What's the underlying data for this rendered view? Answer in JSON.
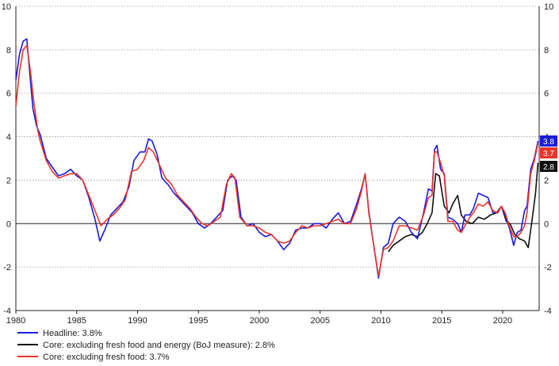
{
  "chart_data": {
    "type": "line",
    "xlim": [
      1980,
      2023
    ],
    "ylim": [
      -4,
      10
    ],
    "yticks": [
      -4,
      -2,
      0,
      2,
      4,
      6,
      8,
      10
    ],
    "xticks": [
      1980,
      1985,
      1990,
      1995,
      2000,
      2005,
      2010,
      2015,
      2020
    ],
    "grid": "horizontal dotted",
    "legend_position": "bottom-left",
    "series": [
      {
        "name": "Headline: 3.8%",
        "color": "#1a1adb",
        "end_value": "3.8",
        "points": [
          [
            1980.0,
            6.6
          ],
          [
            1980.3,
            7.8
          ],
          [
            1980.6,
            8.4
          ],
          [
            1980.9,
            8.5
          ],
          [
            1981.1,
            7.2
          ],
          [
            1981.4,
            5.3
          ],
          [
            1981.7,
            4.5
          ],
          [
            1982.0,
            4.1
          ],
          [
            1982.5,
            3.0
          ],
          [
            1983.0,
            2.6
          ],
          [
            1983.5,
            2.2
          ],
          [
            1984.0,
            2.3
          ],
          [
            1984.5,
            2.5
          ],
          [
            1985.0,
            2.2
          ],
          [
            1985.5,
            2.0
          ],
          [
            1986.0,
            1.2
          ],
          [
            1986.5,
            0.2
          ],
          [
            1986.9,
            -0.8
          ],
          [
            1987.3,
            -0.3
          ],
          [
            1987.8,
            0.4
          ],
          [
            1988.3,
            0.7
          ],
          [
            1988.8,
            1.0
          ],
          [
            1989.3,
            1.7
          ],
          [
            1989.7,
            2.9
          ],
          [
            1990.2,
            3.3
          ],
          [
            1990.6,
            3.3
          ],
          [
            1990.9,
            3.9
          ],
          [
            1991.2,
            3.8
          ],
          [
            1991.6,
            3.2
          ],
          [
            1992.0,
            2.1
          ],
          [
            1992.5,
            1.8
          ],
          [
            1993.0,
            1.4
          ],
          [
            1993.5,
            1.1
          ],
          [
            1994.0,
            0.8
          ],
          [
            1994.5,
            0.5
          ],
          [
            1995.0,
            0.0
          ],
          [
            1995.5,
            -0.2
          ],
          [
            1996.0,
            0.0
          ],
          [
            1996.5,
            0.3
          ],
          [
            1997.0,
            0.6
          ],
          [
            1997.4,
            2.0
          ],
          [
            1997.8,
            2.2
          ],
          [
            1998.1,
            2.0
          ],
          [
            1998.5,
            0.3
          ],
          [
            1999.0,
            -0.1
          ],
          [
            1999.5,
            0.0
          ],
          [
            2000.0,
            -0.4
          ],
          [
            2000.5,
            -0.6
          ],
          [
            2001.0,
            -0.5
          ],
          [
            2001.5,
            -0.8
          ],
          [
            2002.0,
            -1.2
          ],
          [
            2002.5,
            -0.9
          ],
          [
            2003.0,
            -0.3
          ],
          [
            2003.5,
            -0.2
          ],
          [
            2004.0,
            -0.2
          ],
          [
            2004.5,
            0.0
          ],
          [
            2005.0,
            0.0
          ],
          [
            2005.5,
            -0.2
          ],
          [
            2006.0,
            0.2
          ],
          [
            2006.5,
            0.5
          ],
          [
            2007.0,
            0.0
          ],
          [
            2007.5,
            0.1
          ],
          [
            2008.0,
            0.9
          ],
          [
            2008.4,
            1.6
          ],
          [
            2008.7,
            2.3
          ],
          [
            2009.0,
            0.6
          ],
          [
            2009.4,
            -1.0
          ],
          [
            2009.8,
            -2.5
          ],
          [
            2010.2,
            -1.1
          ],
          [
            2010.6,
            -0.9
          ],
          [
            2011.0,
            0.0
          ],
          [
            2011.5,
            0.3
          ],
          [
            2012.0,
            0.1
          ],
          [
            2012.5,
            -0.4
          ],
          [
            2013.0,
            -0.7
          ],
          [
            2013.5,
            0.5
          ],
          [
            2013.9,
            1.6
          ],
          [
            2014.2,
            1.5
          ],
          [
            2014.4,
            3.4
          ],
          [
            2014.6,
            3.6
          ],
          [
            2014.9,
            2.5
          ],
          [
            2015.2,
            2.3
          ],
          [
            2015.5,
            0.3
          ],
          [
            2015.9,
            0.2
          ],
          [
            2016.3,
            0.0
          ],
          [
            2016.6,
            -0.4
          ],
          [
            2016.9,
            0.4
          ],
          [
            2017.3,
            0.4
          ],
          [
            2017.6,
            0.7
          ],
          [
            2018.0,
            1.4
          ],
          [
            2018.4,
            1.3
          ],
          [
            2018.8,
            1.2
          ],
          [
            2019.2,
            0.5
          ],
          [
            2019.6,
            0.5
          ],
          [
            2019.9,
            0.8
          ],
          [
            2020.2,
            0.4
          ],
          [
            2020.6,
            -0.3
          ],
          [
            2020.9,
            -1.0
          ],
          [
            2021.2,
            -0.4
          ],
          [
            2021.5,
            -0.3
          ],
          [
            2021.8,
            0.6
          ],
          [
            2022.0,
            0.8
          ],
          [
            2022.3,
            2.5
          ],
          [
            2022.6,
            3.0
          ],
          [
            2022.9,
            3.8
          ]
        ]
      },
      {
        "name": "Core: excluding fresh food and energy (BoJ measure): 2.8%",
        "color": "#111111",
        "end_value": "2.8",
        "points": [
          [
            2010.6,
            -1.3
          ],
          [
            2011.0,
            -1.0
          ],
          [
            2011.5,
            -0.8
          ],
          [
            2012.0,
            -0.6
          ],
          [
            2012.5,
            -0.5
          ],
          [
            2013.0,
            -0.6
          ],
          [
            2013.4,
            -0.4
          ],
          [
            2013.8,
            0.0
          ],
          [
            2014.2,
            0.5
          ],
          [
            2014.5,
            2.3
          ],
          [
            2014.8,
            2.2
          ],
          [
            2015.2,
            0.8
          ],
          [
            2015.6,
            0.5
          ],
          [
            2015.9,
            0.9
          ],
          [
            2016.3,
            1.3
          ],
          [
            2016.6,
            0.4
          ],
          [
            2017.0,
            0.1
          ],
          [
            2017.5,
            0.0
          ],
          [
            2018.0,
            0.3
          ],
          [
            2018.5,
            0.2
          ],
          [
            2019.0,
            0.4
          ],
          [
            2019.5,
            0.5
          ],
          [
            2019.9,
            0.8
          ],
          [
            2020.3,
            0.1
          ],
          [
            2020.6,
            0.0
          ],
          [
            2021.0,
            -0.5
          ],
          [
            2021.4,
            -0.7
          ],
          [
            2021.8,
            -0.8
          ],
          [
            2022.1,
            -1.1
          ],
          [
            2022.4,
            0.1
          ],
          [
            2022.7,
            1.4
          ],
          [
            2022.9,
            2.8
          ]
        ]
      },
      {
        "name": "Core: excluding fresh food: 3.7%",
        "color": "#e8352a",
        "end_value": "3.7",
        "points": [
          [
            1980.0,
            5.4
          ],
          [
            1980.3,
            7.0
          ],
          [
            1980.6,
            8.0
          ],
          [
            1980.9,
            8.2
          ],
          [
            1981.2,
            7.0
          ],
          [
            1981.5,
            5.5
          ],
          [
            1981.8,
            4.3
          ],
          [
            1982.0,
            3.8
          ],
          [
            1982.5,
            2.9
          ],
          [
            1983.0,
            2.4
          ],
          [
            1983.5,
            2.1
          ],
          [
            1984.0,
            2.2
          ],
          [
            1984.5,
            2.3
          ],
          [
            1985.0,
            2.3
          ],
          [
            1985.5,
            2.0
          ],
          [
            1986.0,
            1.3
          ],
          [
            1986.5,
            0.6
          ],
          [
            1987.0,
            -0.1
          ],
          [
            1987.5,
            0.2
          ],
          [
            1988.0,
            0.4
          ],
          [
            1988.5,
            0.7
          ],
          [
            1989.0,
            1.1
          ],
          [
            1989.5,
            2.4
          ],
          [
            1990.0,
            2.5
          ],
          [
            1990.5,
            2.9
          ],
          [
            1990.9,
            3.5
          ],
          [
            1991.3,
            3.3
          ],
          [
            1991.8,
            2.7
          ],
          [
            1992.3,
            2.1
          ],
          [
            1992.8,
            1.8
          ],
          [
            1993.3,
            1.3
          ],
          [
            1993.8,
            1.0
          ],
          [
            1994.3,
            0.7
          ],
          [
            1994.8,
            0.3
          ],
          [
            1995.3,
            0.0
          ],
          [
            1995.8,
            -0.1
          ],
          [
            1996.3,
            0.1
          ],
          [
            1996.8,
            0.3
          ],
          [
            1997.3,
            1.8
          ],
          [
            1997.7,
            2.3
          ],
          [
            1998.0,
            2.1
          ],
          [
            1998.4,
            0.3
          ],
          [
            1999.0,
            -0.1
          ],
          [
            1999.5,
            -0.1
          ],
          [
            2000.0,
            -0.2
          ],
          [
            2000.5,
            -0.4
          ],
          [
            2001.0,
            -0.5
          ],
          [
            2001.5,
            -0.8
          ],
          [
            2002.0,
            -0.9
          ],
          [
            2002.5,
            -0.8
          ],
          [
            2003.0,
            -0.4
          ],
          [
            2003.5,
            -0.1
          ],
          [
            2004.0,
            -0.2
          ],
          [
            2004.5,
            -0.1
          ],
          [
            2005.0,
            -0.1
          ],
          [
            2005.5,
            0.0
          ],
          [
            2006.0,
            0.1
          ],
          [
            2006.5,
            0.2
          ],
          [
            2007.0,
            0.0
          ],
          [
            2007.5,
            0.0
          ],
          [
            2008.0,
            0.7
          ],
          [
            2008.4,
            1.5
          ],
          [
            2008.7,
            2.3
          ],
          [
            2009.0,
            0.5
          ],
          [
            2009.4,
            -1.0
          ],
          [
            2009.8,
            -2.4
          ],
          [
            2010.2,
            -1.2
          ],
          [
            2010.6,
            -1.1
          ],
          [
            2011.0,
            -0.8
          ],
          [
            2011.5,
            -0.1
          ],
          [
            2012.0,
            -0.1
          ],
          [
            2012.5,
            -0.2
          ],
          [
            2013.0,
            -0.3
          ],
          [
            2013.5,
            0.4
          ],
          [
            2013.9,
            1.2
          ],
          [
            2014.2,
            1.3
          ],
          [
            2014.4,
            3.3
          ],
          [
            2014.6,
            3.3
          ],
          [
            2014.9,
            2.8
          ],
          [
            2015.2,
            2.2
          ],
          [
            2015.5,
            0.1
          ],
          [
            2015.9,
            0.1
          ],
          [
            2016.3,
            -0.3
          ],
          [
            2016.6,
            -0.4
          ],
          [
            2016.9,
            -0.1
          ],
          [
            2017.3,
            0.3
          ],
          [
            2017.6,
            0.5
          ],
          [
            2018.0,
            0.9
          ],
          [
            2018.4,
            0.8
          ],
          [
            2018.8,
            1.0
          ],
          [
            2019.2,
            0.6
          ],
          [
            2019.6,
            0.5
          ],
          [
            2019.9,
            0.8
          ],
          [
            2020.2,
            0.5
          ],
          [
            2020.6,
            -0.2
          ],
          [
            2020.9,
            -0.6
          ],
          [
            2021.2,
            -0.6
          ],
          [
            2021.5,
            -0.4
          ],
          [
            2021.8,
            -0.1
          ],
          [
            2022.0,
            0.5
          ],
          [
            2022.3,
            2.3
          ],
          [
            2022.6,
            2.9
          ],
          [
            2022.9,
            3.7
          ]
        ]
      }
    ]
  }
}
